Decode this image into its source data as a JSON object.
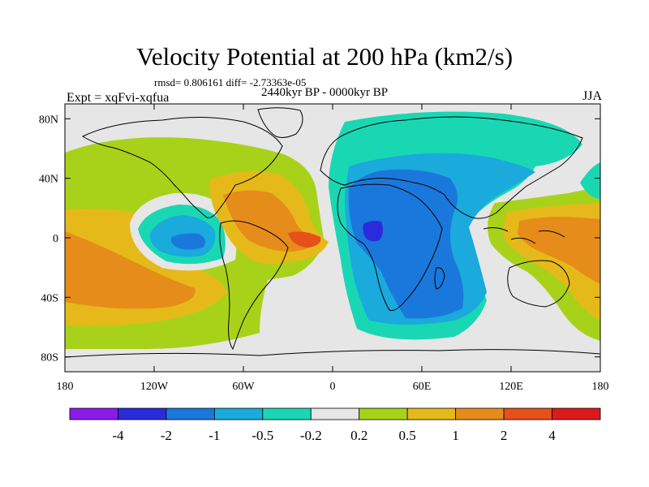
{
  "title": "Velocity Potential at 200 hPa (km2/s)",
  "stats": "rmsd= 0.806161 diff= -2.73363e-05",
  "experiment": "Expt = xqFvi-xqfua",
  "period": "2440kyr BP - 0000kyr BP",
  "season": "JJA",
  "map": {
    "lon_range": [
      -180,
      180
    ],
    "lat_range": [
      -90,
      90
    ],
    "lat_ticks": [
      {
        "value": 80,
        "label": "80N"
      },
      {
        "value": 40,
        "label": "40N"
      },
      {
        "value": 0,
        "label": "0"
      },
      {
        "value": -40,
        "label": "40S"
      },
      {
        "value": -80,
        "label": "80S"
      }
    ],
    "lon_ticks": [
      {
        "value": -180,
        "label": "180"
      },
      {
        "value": -120,
        "label": "120W"
      },
      {
        "value": -60,
        "label": "60W"
      },
      {
        "value": 0,
        "label": "0"
      },
      {
        "value": 60,
        "label": "60E"
      },
      {
        "value": 120,
        "label": "120E"
      },
      {
        "value": 180,
        "label": "180"
      }
    ]
  },
  "colorbar": {
    "levels": [
      "-4",
      "-2",
      "-1",
      "-0.5",
      "-0.2",
      "0.2",
      "0.5",
      "1",
      "2",
      "4"
    ],
    "colors": [
      "#8b1ae8",
      "#2b2bdc",
      "#1a78dc",
      "#1aaadc",
      "#1ad7b4",
      "#e6e6e6",
      "#a8d21a",
      "#e6b91a",
      "#e68c1a",
      "#e6501a",
      "#dc1a1a"
    ]
  }
}
